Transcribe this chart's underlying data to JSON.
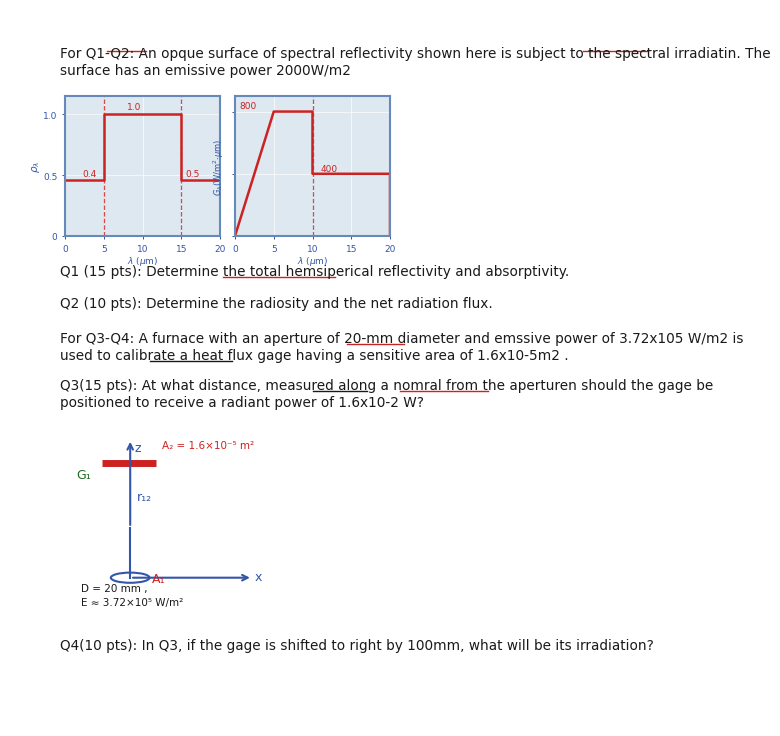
{
  "background_color": "#ffffff",
  "text_color": "#1a1a1a",
  "graph_bg": "#dde8f0",
  "graph_border": "#6688bb",
  "red_color": "#cc2222",
  "blue_color": "#3355aa",
  "green_color": "#226622",
  "title_line1": "For Q1-Q2: An opque surface of spectral reflectivity shown here is subject to the spectral irradiatin. The",
  "title_line2": "surface has an emissive power 2000W/m2",
  "q1_text": "Q1 (15 pts): Determine the total hemsiperical reflectivity and absorptivity.",
  "q2_text": "Q2 (10 pts): Determine the radiosity and the net radiation flux.",
  "q34_line1": "For Q3-Q4: A furnace with an aperture of 20-mm diameter and emssive power of 3.72x105 W/m2 is",
  "q34_line2": "used to calibrate a heat flux gage having a sensitive area of 1.6x10-5m2 .",
  "q3_line1": "Q3(15 pts): At what distance, measured along a nomral from the aperturen should the gage be",
  "q3_line2": "positioned to receive a radiant power of 1.6x10-2 W?",
  "q4_text": "Q4(10 pts): In Q3, if the gage is shifted to right by 100mm, what will be its irradiation?"
}
